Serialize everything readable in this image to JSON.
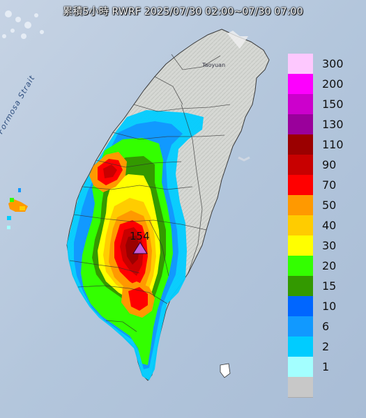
{
  "title": "累積5小時 RWRF 2025/07/30 02:00~07/30 07:00",
  "map_labels": {
    "strait": "Formosa Strait",
    "city": "Taoyuan"
  },
  "max_marker": {
    "value": "154",
    "icon": "triangle-marker-icon",
    "color": "#c35bd6"
  },
  "legend": {
    "items": [
      {
        "label": "300",
        "color": "#fdc8fe"
      },
      {
        "label": "200",
        "color": "#fd00fe"
      },
      {
        "label": "150",
        "color": "#cc00cc"
      },
      {
        "label": "130",
        "color": "#9a009b"
      },
      {
        "label": "110",
        "color": "#9b0000"
      },
      {
        "label": "90",
        "color": "#c80000"
      },
      {
        "label": "70",
        "color": "#ff0000"
      },
      {
        "label": "50",
        "color": "#ff9900"
      },
      {
        "label": "40",
        "color": "#ffcc00"
      },
      {
        "label": "30",
        "color": "#ffff00"
      },
      {
        "label": "20",
        "color": "#33ff00"
      },
      {
        "label": "15",
        "color": "#339900"
      },
      {
        "label": "10",
        "color": "#0066ff"
      },
      {
        "label": "6",
        "color": "#1199ff"
      },
      {
        "label": "2",
        "color": "#00ccff"
      },
      {
        "label": "1",
        "color": "#a3ffff"
      },
      {
        "label": "",
        "color": "#c8c8c8"
      }
    ]
  },
  "colors": {
    "sea": "#b9c9dd",
    "land": "#d7d9d6",
    "mountain_shade": "#c4c7c4"
  }
}
